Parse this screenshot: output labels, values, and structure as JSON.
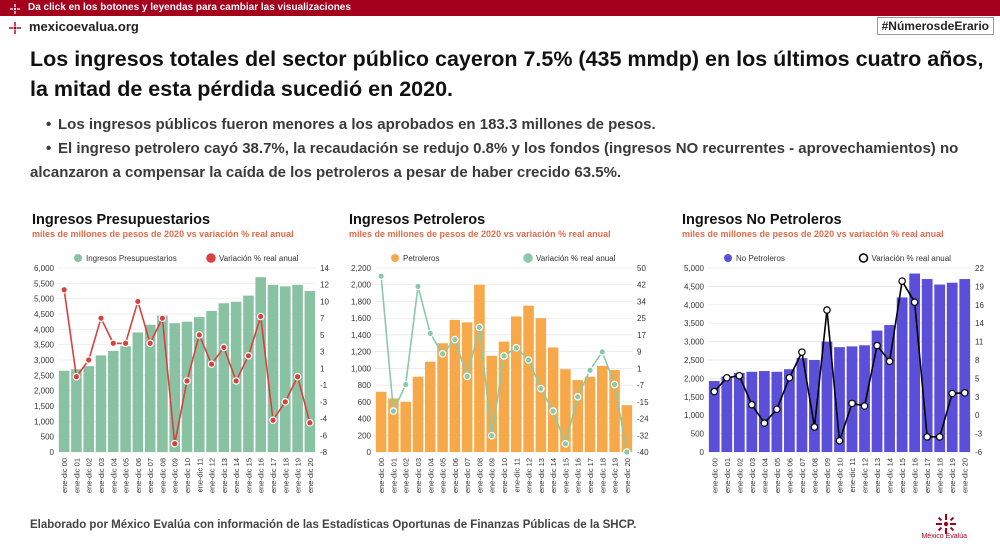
{
  "top_bar": {
    "text": "Da click en los botones y leyendas para cambiar las visualizaciones"
  },
  "header": {
    "site": "mexicoevalua.org",
    "hashtag": "#NúmerosdeErario"
  },
  "headline": "Los ingresos totales del sector público cayeron 7.5% (435 mmdp) en los últimos cuatro años, la mitad de esta pérdida sucedió en 2020.",
  "bullets": [
    "Los ingresos públicos fueron menores a los aprobados en 183.3 millones de pesos.",
    "El ingreso petrolero cayó 38.7%, la recaudación se redujo 0.8% y los fondos (ingresos NO recurrentes - aprovechamientos) no",
    "alcanzaron a compensar la caída de los petroleros a pesar de haber crecido 63.5%."
  ],
  "footer": "Elaborado por México Evalúa con información de las Estadísticas Oportunas de Finanzas Públicas de la SHCP.",
  "logo_text": "México Evalúa",
  "colors": {
    "brand": "#a4001d",
    "accent_subtitle": "#e06b4a"
  },
  "chart_data": [
    {
      "type": "bar",
      "title": "Ingresos Presupuestarios",
      "subtitle": "miles de millones de pesos de 2020 vs variación % real anual",
      "categories": [
        "ene-dic 00",
        "ene-dic 01",
        "ene-dic 02",
        "ene-dic 03",
        "ene-dic 04",
        "ene-dic 05",
        "ene-dic 06",
        "ene-dic 07",
        "ene-dic 08",
        "ene-dic 09",
        "ene-dic 10",
        "ene-dic 11",
        "ene-dic 12",
        "ene-dic 13",
        "ene-dic 14",
        "ene-dic 15",
        "ene-dic 16",
        "ene-dic 17",
        "ene-dic 18",
        "ene-dic 19",
        "ene-dic 20"
      ],
      "series": [
        {
          "name": "Ingresos Presupuestarios",
          "kind": "bar",
          "axis": "left",
          "color": "#88c2a2",
          "values": [
            2650,
            2700,
            2800,
            3150,
            3300,
            3450,
            3900,
            4150,
            4450,
            4200,
            4250,
            4400,
            4600,
            4850,
            4900,
            5100,
            5700,
            5450,
            5400,
            5450,
            5250
          ]
        },
        {
          "name": "Variación % real anual",
          "kind": "line",
          "axis": "right",
          "color": "#d94040",
          "marker_fill": "#d94040",
          "values": [
            11.4,
            1.0,
            3.0,
            8.0,
            5.0,
            5.0,
            10.0,
            5.0,
            8.0,
            -7.0,
            0.5,
            6.0,
            2.5,
            4.5,
            0.5,
            3.5,
            8.2,
            -4.2,
            -2.0,
            1.0,
            -4.5
          ]
        }
      ],
      "left_ticks": [
        "6,000",
        "5,500",
        "5,000",
        "4,500",
        "4,000",
        "3,500",
        "3,000",
        "2,500",
        "2,000",
        "1,500",
        "1,000",
        "500",
        "0"
      ],
      "right_ticks": [
        "14",
        "12",
        "10",
        "7",
        "5",
        "3",
        "1",
        "-1",
        "-3",
        "-4",
        "-6",
        "-8"
      ],
      "ylim": [
        0,
        6000
      ],
      "y2lim": [
        -8,
        14
      ]
    },
    {
      "type": "bar",
      "title": "Ingresos Petroleros",
      "subtitle": "miles de millones de pesos de 2020 vs variación % real anual",
      "categories": [
        "ene-dic 00",
        "ene-dic 01",
        "ene-dic 02",
        "ene-dic 03",
        "ene-dic 04",
        "ene-dic 05",
        "ene-dic 06",
        "ene-dic 07",
        "ene-dic 08",
        "ene-dic 09",
        "ene-dic 10",
        "ene-dic 11",
        "ene-dic 12",
        "ene-dic 13",
        "ene-dic 14",
        "ene-dic 15",
        "ene-dic 16",
        "ene-dic 17",
        "ene-dic 18",
        "ene-dic 19",
        "ene-dic 20"
      ],
      "series": [
        {
          "name": "Petroleros",
          "kind": "bar",
          "axis": "left",
          "color": "#f7a94a",
          "values": [
            720,
            640,
            600,
            900,
            1080,
            1300,
            1580,
            1550,
            2000,
            1150,
            1320,
            1620,
            1750,
            1600,
            1250,
            990,
            860,
            900,
            1030,
            980,
            560
          ]
        },
        {
          "name": "Variación % real anual",
          "kind": "line",
          "axis": "right",
          "color": "#8ac9aa",
          "marker_fill": "#8ac9aa",
          "values": [
            46,
            -20,
            -7,
            41,
            18,
            8,
            15,
            -3,
            21,
            -32,
            7,
            11,
            5,
            -9,
            -20,
            -36,
            -13,
            0,
            9,
            -7,
            -40
          ]
        }
      ],
      "left_ticks": [
        "2,200",
        "2,000",
        "1,800",
        "1,600",
        "1,400",
        "1,200",
        "1,000",
        "800",
        "600",
        "400",
        "200",
        "0"
      ],
      "right_ticks": [
        "50",
        "42",
        "34",
        "25",
        "17",
        "9",
        "1",
        "-7",
        "-15",
        "-24",
        "-32",
        "-40"
      ],
      "ylim": [
        0,
        2200
      ],
      "y2lim": [
        -40,
        50
      ]
    },
    {
      "type": "bar",
      "title": "Ingresos No Petroleros",
      "subtitle": "miles de millones de pesos de 2020 vs variación % real anual",
      "categories": [
        "ene-dic 00",
        "ene-dic 01",
        "ene-dic 02",
        "ene-dic 03",
        "ene-dic 04",
        "ene-dic 05",
        "ene-dic 06",
        "ene-dic 07",
        "ene-dic 08",
        "ene-dic 09",
        "ene-dic 10",
        "ene-dic 11",
        "ene-dic 12",
        "ene-dic 13",
        "ene-dic 14",
        "ene-dic 15",
        "ene-dic 16",
        "ene-dic 17",
        "ene-dic 18",
        "ene-dic 19",
        "ene-dic 20"
      ],
      "series": [
        {
          "name": "No Petroleros",
          "kind": "bar",
          "axis": "left",
          "color": "#5b4fd9",
          "values": [
            1930,
            2050,
            2150,
            2180,
            2200,
            2180,
            2250,
            2550,
            2500,
            3000,
            2850,
            2870,
            2900,
            3300,
            3450,
            4200,
            4850,
            4700,
            4550,
            4600,
            4700
          ]
        },
        {
          "name": "Variación % real anual",
          "kind": "line",
          "axis": "right",
          "color": "#000000",
          "marker_fill": "#ffffff",
          "values": [
            3.2,
            5.3,
            5.6,
            1.2,
            -1.6,
            0.5,
            5.3,
            9.2,
            -2.2,
            15.6,
            -4.3,
            1.4,
            1.0,
            10.2,
            7.8,
            20.0,
            16.8,
            -3.7,
            -3.7,
            2.9,
            3.0
          ]
        }
      ],
      "left_ticks": [
        "5,000",
        "4,500",
        "4,000",
        "3,500",
        "3,000",
        "2,500",
        "2,000",
        "1,500",
        "1,000",
        "500",
        "0"
      ],
      "right_ticks": [
        "22",
        "19",
        "16",
        "14",
        "11",
        "8",
        "5",
        "3",
        "0",
        "-3",
        "-6"
      ],
      "ylim": [
        0,
        5000
      ],
      "y2lim": [
        -6,
        22
      ]
    }
  ]
}
